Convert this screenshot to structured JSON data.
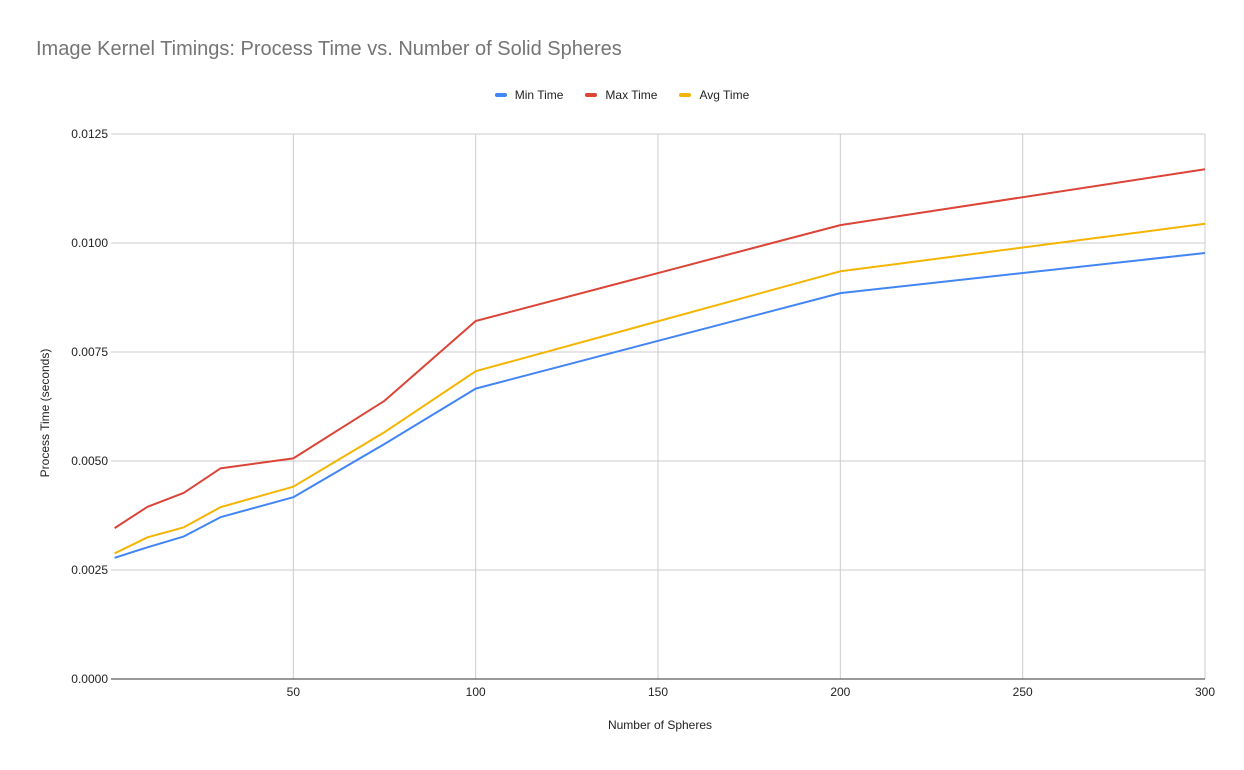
{
  "chart_data": {
    "type": "line",
    "title": "Image Kernel Timings: Process Time vs. Number of Solid Spheres",
    "xlabel": "Number of Spheres",
    "ylabel": "Process Time (seconds)",
    "xlim": [
      0,
      300
    ],
    "ylim": [
      0,
      0.0125
    ],
    "x_ticks": [
      50,
      100,
      150,
      200,
      250,
      300
    ],
    "y_ticks": [
      "0.0000",
      "0.0025",
      "0.0050",
      "0.0075",
      "0.0100",
      "0.0125"
    ],
    "grid": true,
    "legend_position": "top",
    "x": [
      1,
      10,
      20,
      30,
      50,
      75,
      100,
      200,
      300
    ],
    "series": [
      {
        "name": "Min Time",
        "color": "#4285f4",
        "values": [
          0.00278,
          0.00302,
          0.00327,
          0.00371,
          0.00417,
          0.00539,
          0.00666,
          0.00885,
          0.00977
        ]
      },
      {
        "name": "Max Time",
        "color": "#db4437",
        "values": [
          0.00346,
          0.00395,
          0.00427,
          0.00483,
          0.00506,
          0.00638,
          0.00821,
          0.01041,
          0.01169
        ]
      },
      {
        "name": "Avg Time",
        "color": "#f4b400",
        "values": [
          0.00288,
          0.00325,
          0.00348,
          0.00394,
          0.00441,
          0.00566,
          0.00706,
          0.00935,
          0.01044
        ]
      }
    ]
  }
}
